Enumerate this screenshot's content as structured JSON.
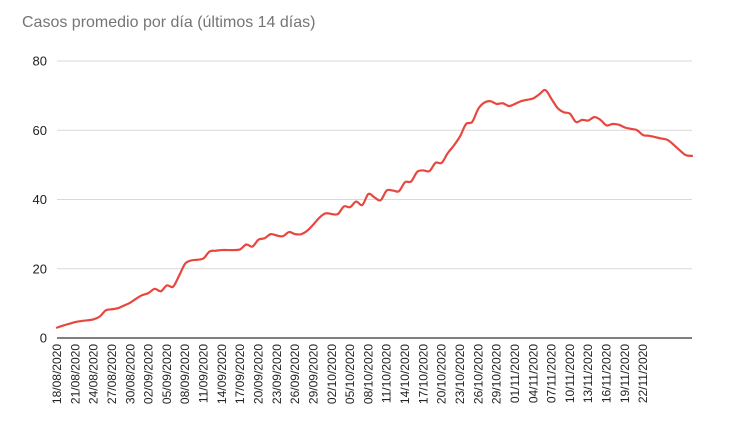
{
  "chart_data": {
    "type": "line",
    "title": "Casos promedio por día (últimos 14 días)",
    "xlabel": "",
    "ylabel": "",
    "ylim": [
      0,
      80
    ],
    "yticks": [
      "0",
      "20",
      "40",
      "60",
      "80"
    ],
    "grid": true,
    "legend": "none",
    "line_color": "#e8473f",
    "start_date": "18/08/2020",
    "x_tick_labels": [
      "18/08/2020",
      "21/08/2020",
      "24/08/2020",
      "27/08/2020",
      "30/08/2020",
      "02/09/2020",
      "05/09/2020",
      "08/09/2020",
      "11/09/2020",
      "14/09/2020",
      "17/09/2020",
      "20/09/2020",
      "23/09/2020",
      "26/09/2020",
      "29/09/2020",
      "02/10/2020",
      "05/10/2020",
      "08/10/2020",
      "11/10/2020",
      "14/10/2020",
      "17/10/2020",
      "20/10/2020",
      "23/10/2020",
      "26/10/2020",
      "29/10/2020",
      "01/11/2020",
      "04/11/2020",
      "07/11/2020",
      "10/11/2020",
      "13/11/2020",
      "16/11/2020",
      "19/11/2020",
      "22/11/2020"
    ],
    "series": [
      {
        "name": "",
        "values": [
          3.0,
          3.6,
          4.1,
          4.6,
          4.9,
          5.1,
          5.4,
          6.2,
          8.0,
          8.3,
          8.6,
          9.4,
          10.2,
          11.4,
          12.4,
          13.0,
          14.2,
          13.5,
          15.2,
          14.8,
          18.0,
          21.5,
          22.4,
          22.6,
          23.0,
          25.0,
          25.2,
          25.4,
          25.4,
          25.4,
          25.6,
          27.0,
          26.4,
          28.4,
          28.8,
          30.0,
          29.6,
          29.4,
          30.6,
          30.0,
          30.0,
          31.0,
          32.8,
          34.8,
          36.0,
          35.8,
          35.8,
          38.0,
          37.8,
          39.4,
          38.4,
          41.6,
          40.6,
          39.8,
          42.6,
          42.6,
          42.4,
          45.0,
          45.2,
          48.0,
          48.4,
          48.2,
          50.6,
          50.6,
          53.4,
          55.6,
          58.2,
          61.8,
          62.4,
          66.2,
          68.0,
          68.4,
          67.6,
          67.8,
          67.0,
          67.6,
          68.4,
          68.8,
          69.2,
          70.4,
          71.6,
          69.0,
          66.4,
          65.2,
          64.8,
          62.4,
          63.0,
          62.8,
          63.8,
          63.0,
          61.4,
          61.8,
          61.6,
          60.8,
          60.4,
          60.0,
          58.6,
          58.4,
          58.0,
          57.6,
          57.2,
          55.8,
          54.2,
          52.8,
          52.6
        ]
      }
    ]
  }
}
